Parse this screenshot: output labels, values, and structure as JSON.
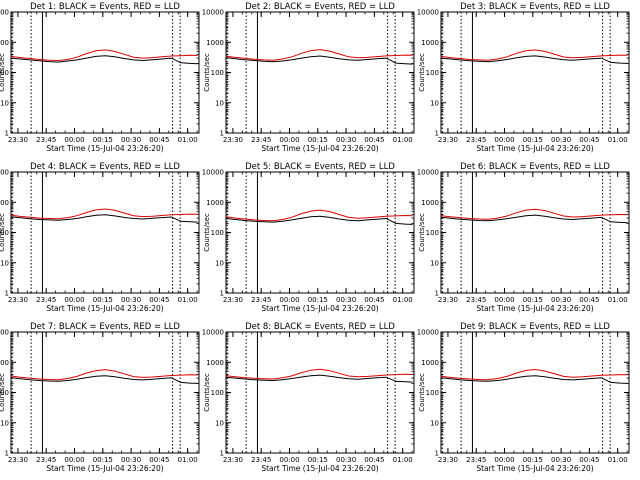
{
  "colors": {
    "events": "#000000",
    "lld": "#e00000",
    "axis": "#000000",
    "background": "#ffffff"
  },
  "chart_data": [
    {
      "type": "line",
      "title": "Det 1: BLACK = Events, RED = LLD",
      "xlabel": "Start Time (15-Jul-04 23:26:20)",
      "ylabel": "Counts/sec",
      "xlim": [
        "23:26:20",
        "01:06:00"
      ],
      "ylim": [
        1,
        10000
      ],
      "yscale": "log",
      "x_ticks": [
        "23:30",
        "23:45",
        "00:00",
        "00:15",
        "00:30",
        "00:45",
        "01:00"
      ],
      "y_ticks": [
        "1",
        "10",
        "100",
        "1000",
        "10000"
      ],
      "x_minutes": [
        0,
        5,
        10,
        15,
        20,
        25,
        30,
        35,
        40,
        45,
        50,
        55,
        60,
        65,
        70,
        75,
        80,
        85,
        90,
        95,
        99
      ],
      "series": [
        {
          "name": "Events",
          "values": [
            300,
            280,
            260,
            245,
            230,
            220,
            240,
            260,
            300,
            340,
            360,
            330,
            290,
            260,
            250,
            265,
            280,
            300,
            210,
            200,
            195
          ]
        },
        {
          "name": "LLD",
          "values": [
            340,
            310,
            290,
            270,
            255,
            250,
            270,
            320,
            420,
            520,
            560,
            500,
            400,
            320,
            300,
            310,
            330,
            350,
            360,
            370,
            365
          ]
        }
      ],
      "vlines": [
        {
          "x": "23:27",
          "style": "dotted"
        },
        {
          "x": "23:37",
          "style": "dotted"
        },
        {
          "x": "23:43",
          "style": "solid"
        },
        {
          "x": "00:52",
          "style": "dotted"
        },
        {
          "x": "00:56",
          "style": "dotted"
        }
      ],
      "grid": false
    },
    {
      "type": "line",
      "title": "Det 2: BLACK = Events, RED = LLD",
      "xlabel": "Start Time (15-Jul-04 23:26:20)",
      "ylabel": "Counts/sec",
      "xlim": [
        "23:26:20",
        "01:06:00"
      ],
      "ylim": [
        1,
        10000
      ],
      "yscale": "log",
      "x_ticks": [
        "23:30",
        "23:45",
        "00:00",
        "00:15",
        "00:30",
        "00:45",
        "01:00"
      ],
      "y_ticks": [
        "1",
        "10",
        "100",
        "1000",
        "10000"
      ],
      "x_minutes": [
        0,
        5,
        10,
        15,
        20,
        25,
        30,
        35,
        40,
        45,
        50,
        55,
        60,
        65,
        70,
        75,
        80,
        85,
        90,
        95,
        99
      ],
      "series": [
        {
          "name": "Events",
          "values": [
            310,
            285,
            265,
            250,
            235,
            225,
            240,
            265,
            300,
            330,
            350,
            320,
            285,
            260,
            255,
            270,
            285,
            300,
            205,
            195,
            190
          ]
        },
        {
          "name": "LLD",
          "values": [
            345,
            315,
            295,
            275,
            260,
            255,
            280,
            330,
            430,
            530,
            570,
            510,
            410,
            330,
            305,
            315,
            335,
            355,
            365,
            375,
            370
          ]
        }
      ],
      "vlines": [
        {
          "x": "23:27",
          "style": "dotted"
        },
        {
          "x": "23:37",
          "style": "dotted"
        },
        {
          "x": "23:43",
          "style": "solid"
        },
        {
          "x": "00:52",
          "style": "dotted"
        },
        {
          "x": "00:56",
          "style": "dotted"
        }
      ],
      "grid": false
    },
    {
      "type": "line",
      "title": "Det 3: BLACK = Events, RED = LLD",
      "xlabel": "Start Time (15-Jul-04 23:26:20)",
      "ylabel": "Counts/sec",
      "xlim": [
        "23:26:20",
        "01:06:00"
      ],
      "ylim": [
        1,
        10000
      ],
      "yscale": "log",
      "x_ticks": [
        "23:30",
        "23:45",
        "00:00",
        "00:15",
        "00:30",
        "00:45",
        "01:00"
      ],
      "y_ticks": [
        "1",
        "10",
        "100",
        "1000",
        "10000"
      ],
      "x_minutes": [
        0,
        5,
        10,
        15,
        20,
        25,
        30,
        35,
        40,
        45,
        50,
        55,
        60,
        65,
        70,
        75,
        80,
        85,
        90,
        95,
        99
      ],
      "series": [
        {
          "name": "Events",
          "values": [
            300,
            280,
            260,
            245,
            235,
            225,
            245,
            270,
            305,
            340,
            355,
            325,
            290,
            265,
            255,
            270,
            285,
            300,
            215,
            205,
            200
          ]
        },
        {
          "name": "LLD",
          "values": [
            340,
            310,
            290,
            270,
            260,
            255,
            280,
            330,
            430,
            520,
            560,
            500,
            405,
            325,
            305,
            315,
            335,
            355,
            365,
            375,
            370
          ]
        }
      ],
      "vlines": [
        {
          "x": "23:27",
          "style": "dotted"
        },
        {
          "x": "23:37",
          "style": "dotted"
        },
        {
          "x": "23:43",
          "style": "solid"
        },
        {
          "x": "00:52",
          "style": "dotted"
        },
        {
          "x": "00:56",
          "style": "dotted"
        }
      ],
      "grid": false
    },
    {
      "type": "line",
      "title": "Det 4: BLACK = Events, RED = LLD",
      "xlabel": "Start Time (15-Jul-04 23:26:20)",
      "ylabel": "Counts/sec",
      "xlim": [
        "23:26:20",
        "01:06:00"
      ],
      "ylim": [
        1,
        10000
      ],
      "yscale": "log",
      "x_ticks": [
        "23:30",
        "23:45",
        "00:00",
        "00:15",
        "00:30",
        "00:45",
        "01:00"
      ],
      "y_ticks": [
        "1",
        "10",
        "100",
        "1000",
        "10000"
      ],
      "x_minutes": [
        0,
        5,
        10,
        15,
        20,
        25,
        30,
        35,
        40,
        45,
        50,
        55,
        60,
        65,
        70,
        75,
        80,
        85,
        90,
        95,
        99
      ],
      "series": [
        {
          "name": "Events",
          "values": [
            330,
            305,
            285,
            270,
            260,
            255,
            270,
            290,
            330,
            370,
            385,
            355,
            315,
            290,
            280,
            295,
            310,
            325,
            235,
            225,
            220
          ]
        },
        {
          "name": "LLD",
          "values": [
            370,
            340,
            320,
            300,
            290,
            285,
            310,
            360,
            460,
            560,
            600,
            540,
            440,
            360,
            335,
            345,
            365,
            385,
            395,
            405,
            400
          ]
        }
      ],
      "vlines": [
        {
          "x": "23:27",
          "style": "dotted"
        },
        {
          "x": "23:37",
          "style": "dotted"
        },
        {
          "x": "23:43",
          "style": "solid"
        },
        {
          "x": "00:52",
          "style": "dotted"
        },
        {
          "x": "00:56",
          "style": "dotted"
        }
      ],
      "grid": false
    },
    {
      "type": "line",
      "title": "Det 5: BLACK = Events, RED = LLD",
      "xlabel": "Start Time (15-Jul-04 23:26:20)",
      "ylabel": "Counts/sec",
      "xlim": [
        "23:26:20",
        "01:06:00"
      ],
      "ylim": [
        1,
        10000
      ],
      "yscale": "log",
      "x_ticks": [
        "23:30",
        "23:45",
        "00:00",
        "00:15",
        "00:30",
        "00:45",
        "01:00"
      ],
      "y_ticks": [
        "1",
        "10",
        "100",
        "1000",
        "10000"
      ],
      "x_minutes": [
        0,
        5,
        10,
        15,
        20,
        25,
        30,
        35,
        40,
        45,
        50,
        55,
        60,
        65,
        70,
        75,
        80,
        85,
        90,
        95,
        99
      ],
      "series": [
        {
          "name": "Events",
          "values": [
            290,
            270,
            250,
            235,
            225,
            220,
            235,
            260,
            295,
            330,
            345,
            315,
            280,
            255,
            245,
            260,
            275,
            290,
            200,
            190,
            185
          ]
        },
        {
          "name": "LLD",
          "values": [
            330,
            300,
            280,
            260,
            250,
            245,
            270,
            320,
            420,
            510,
            550,
            490,
            395,
            315,
            295,
            305,
            325,
            345,
            355,
            365,
            360
          ]
        }
      ],
      "vlines": [
        {
          "x": "23:27",
          "style": "dotted"
        },
        {
          "x": "23:37",
          "style": "dotted"
        },
        {
          "x": "23:43",
          "style": "solid"
        },
        {
          "x": "00:52",
          "style": "dotted"
        },
        {
          "x": "00:56",
          "style": "dotted"
        }
      ],
      "grid": false
    },
    {
      "type": "line",
      "title": "Det 6: BLACK = Events, RED = LLD",
      "xlabel": "Start Time (15-Jul-04 23:26:20)",
      "ylabel": "Counts/sec",
      "xlim": [
        "23:26:20",
        "01:06:00"
      ],
      "ylim": [
        1,
        10000
      ],
      "yscale": "log",
      "x_ticks": [
        "23:30",
        "23:45",
        "00:00",
        "00:15",
        "00:30",
        "00:45",
        "01:00"
      ],
      "y_ticks": [
        "1",
        "10",
        "100",
        "1000",
        "10000"
      ],
      "x_minutes": [
        0,
        5,
        10,
        15,
        20,
        25,
        30,
        35,
        40,
        45,
        50,
        55,
        60,
        65,
        70,
        75,
        80,
        85,
        90,
        95,
        99
      ],
      "series": [
        {
          "name": "Events",
          "values": [
            320,
            295,
            275,
            260,
            250,
            245,
            260,
            285,
            320,
            360,
            375,
            345,
            305,
            280,
            270,
            285,
            300,
            315,
            225,
            215,
            210
          ]
        },
        {
          "name": "LLD",
          "values": [
            360,
            330,
            310,
            290,
            280,
            275,
            300,
            350,
            450,
            550,
            590,
            530,
            430,
            350,
            325,
            335,
            355,
            375,
            385,
            395,
            390
          ]
        }
      ],
      "vlines": [
        {
          "x": "23:27",
          "style": "dotted"
        },
        {
          "x": "23:37",
          "style": "dotted"
        },
        {
          "x": "23:43",
          "style": "solid"
        },
        {
          "x": "00:52",
          "style": "dotted"
        },
        {
          "x": "00:56",
          "style": "dotted"
        }
      ],
      "grid": false
    },
    {
      "type": "line",
      "title": "Det 7: BLACK = Events, RED = LLD",
      "xlabel": "Start Time (15-Jul-04 23:26:20)",
      "ylabel": "Counts/sec",
      "xlim": [
        "23:26:20",
        "01:06:00"
      ],
      "ylim": [
        1,
        10000
      ],
      "yscale": "log",
      "x_ticks": [
        "23:30",
        "23:45",
        "00:00",
        "00:15",
        "00:30",
        "00:45",
        "01:00"
      ],
      "y_ticks": [
        "1",
        "10",
        "100",
        "1000",
        "10000"
      ],
      "x_minutes": [
        0,
        5,
        10,
        15,
        20,
        25,
        30,
        35,
        40,
        45,
        50,
        55,
        60,
        65,
        70,
        75,
        80,
        85,
        90,
        95,
        99
      ],
      "series": [
        {
          "name": "Events",
          "values": [
            310,
            285,
            265,
            250,
            240,
            235,
            250,
            275,
            310,
            345,
            360,
            330,
            295,
            270,
            260,
            275,
            290,
            305,
            215,
            205,
            200
          ]
        },
        {
          "name": "LLD",
          "values": [
            350,
            320,
            300,
            280,
            270,
            265,
            290,
            340,
            440,
            530,
            570,
            510,
            415,
            335,
            315,
            325,
            345,
            365,
            375,
            385,
            380
          ]
        }
      ],
      "vlines": [
        {
          "x": "23:27",
          "style": "dotted"
        },
        {
          "x": "23:37",
          "style": "dotted"
        },
        {
          "x": "23:43",
          "style": "solid"
        },
        {
          "x": "00:52",
          "style": "dotted"
        },
        {
          "x": "00:56",
          "style": "dotted"
        }
      ],
      "grid": false
    },
    {
      "type": "line",
      "title": "Det 8: BLACK = Events, RED = LLD",
      "xlabel": "Start Time (15-Jul-04 23:26:20)",
      "ylabel": "Counts/sec",
      "xlim": [
        "23:26:20",
        "01:06:00"
      ],
      "ylim": [
        1,
        10000
      ],
      "yscale": "log",
      "x_ticks": [
        "23:30",
        "23:45",
        "00:00",
        "00:15",
        "00:30",
        "00:45",
        "01:00"
      ],
      "y_ticks": [
        "1",
        "10",
        "100",
        "1000",
        "10000"
      ],
      "x_minutes": [
        0,
        5,
        10,
        15,
        20,
        25,
        30,
        35,
        40,
        45,
        50,
        55,
        60,
        65,
        70,
        75,
        80,
        85,
        90,
        95,
        99
      ],
      "series": [
        {
          "name": "Events",
          "values": [
            320,
            300,
            280,
            265,
            255,
            250,
            265,
            290,
            325,
            360,
            375,
            345,
            310,
            285,
            275,
            290,
            305,
            320,
            235,
            225,
            220
          ]
        },
        {
          "name": "LLD",
          "values": [
            360,
            330,
            310,
            295,
            285,
            280,
            305,
            355,
            455,
            545,
            585,
            525,
            430,
            350,
            330,
            340,
            360,
            380,
            390,
            400,
            395
          ]
        }
      ],
      "vlines": [
        {
          "x": "23:27",
          "style": "dotted"
        },
        {
          "x": "23:37",
          "style": "dotted"
        },
        {
          "x": "23:43",
          "style": "solid"
        },
        {
          "x": "00:52",
          "style": "dotted"
        },
        {
          "x": "00:56",
          "style": "dotted"
        }
      ],
      "grid": false
    },
    {
      "type": "line",
      "title": "Det 9: BLACK = Events, RED = LLD",
      "xlabel": "Start Time (15-Jul-04 23:26:20)",
      "ylabel": "Counts/sec",
      "xlim": [
        "23:26:20",
        "01:06:00"
      ],
      "ylim": [
        1,
        10000
      ],
      "yscale": "log",
      "x_ticks": [
        "23:30",
        "23:45",
        "00:00",
        "00:15",
        "00:30",
        "00:45",
        "01:00"
      ],
      "y_ticks": [
        "1",
        "10",
        "100",
        "1000",
        "10000"
      ],
      "x_minutes": [
        0,
        5,
        10,
        15,
        20,
        25,
        30,
        35,
        40,
        45,
        50,
        55,
        60,
        65,
        70,
        75,
        80,
        85,
        90,
        95,
        99
      ],
      "series": [
        {
          "name": "Events",
          "values": [
            305,
            285,
            265,
            250,
            240,
            235,
            250,
            275,
            310,
            345,
            360,
            330,
            295,
            270,
            260,
            275,
            290,
            305,
            215,
            205,
            200
          ]
        },
        {
          "name": "LLD",
          "values": [
            345,
            315,
            295,
            280,
            270,
            265,
            290,
            340,
            440,
            535,
            575,
            515,
            420,
            340,
            320,
            330,
            350,
            370,
            380,
            390,
            385
          ]
        }
      ],
      "vlines": [
        {
          "x": "23:27",
          "style": "dotted"
        },
        {
          "x": "23:37",
          "style": "dotted"
        },
        {
          "x": "23:43",
          "style": "solid"
        },
        {
          "x": "00:52",
          "style": "dotted"
        },
        {
          "x": "00:56",
          "style": "dotted"
        }
      ],
      "grid": false
    }
  ]
}
